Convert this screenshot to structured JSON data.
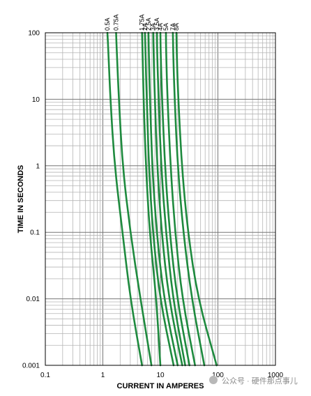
{
  "chart_data": {
    "type": "line",
    "title": "",
    "xlabel": "CURRENT IN AMPERES",
    "ylabel": "TIME IN SECONDS",
    "x_scale": "log",
    "y_scale": "log",
    "xlim": [
      0.1,
      1000
    ],
    "ylim": [
      0.001,
      100
    ],
    "x_ticks": [
      "0.1",
      "1",
      "10",
      "100",
      "1000"
    ],
    "y_ticks": [
      "0.001",
      "0.01",
      "0.1",
      "1",
      "10",
      "100"
    ],
    "grid": true,
    "line_color": "#1e8a3e",
    "series": [
      {
        "name": "0.5A",
        "points": [
          [
            1.2,
            100
          ],
          [
            1.25,
            50
          ],
          [
            1.35,
            10
          ],
          [
            1.6,
            1
          ],
          [
            2.2,
            0.1
          ],
          [
            3.0,
            0.01
          ],
          [
            4.8,
            0.001
          ]
        ]
      },
      {
        "name": "0.75A",
        "points": [
          [
            1.7,
            100
          ],
          [
            1.75,
            50
          ],
          [
            1.9,
            10
          ],
          [
            2.2,
            1
          ],
          [
            3.0,
            0.1
          ],
          [
            4.5,
            0.01
          ],
          [
            7.0,
            0.001
          ]
        ]
      },
      {
        "name": "1.75A",
        "points": [
          [
            4.8,
            100
          ],
          [
            4.9,
            50
          ],
          [
            5.1,
            10
          ],
          [
            5.6,
            1
          ],
          [
            6.5,
            0.1
          ],
          [
            8.5,
            0.01
          ],
          [
            10,
            0.001
          ]
        ]
      },
      {
        "name": "2A",
        "points": [
          [
            5.4,
            100
          ],
          [
            5.5,
            50
          ],
          [
            5.8,
            10
          ],
          [
            6.3,
            1
          ],
          [
            7.4,
            0.1
          ],
          [
            9.8,
            0.01
          ],
          [
            17,
            0.001
          ]
        ]
      },
      {
        "name": "2.5A",
        "points": [
          [
            6.2,
            100
          ],
          [
            6.3,
            50
          ],
          [
            6.6,
            10
          ],
          [
            7.2,
            1
          ],
          [
            8.6,
            0.1
          ],
          [
            11.5,
            0.01
          ],
          [
            20,
            0.001
          ]
        ]
      },
      {
        "name": "3A",
        "points": [
          [
            7.5,
            100
          ],
          [
            7.6,
            50
          ],
          [
            8.0,
            10
          ],
          [
            8.8,
            1
          ],
          [
            10.5,
            0.1
          ],
          [
            14,
            0.01
          ],
          [
            24,
            0.001
          ]
        ]
      },
      {
        "name": "3.5A",
        "points": [
          [
            8.7,
            100
          ],
          [
            8.8,
            50
          ],
          [
            9.3,
            10
          ],
          [
            10.3,
            1
          ],
          [
            12.5,
            0.1
          ],
          [
            16.5,
            0.01
          ],
          [
            27,
            0.001
          ]
        ]
      },
      {
        "name": "4A",
        "points": [
          [
            10,
            100
          ],
          [
            10.1,
            50
          ],
          [
            10.7,
            10
          ],
          [
            12,
            1
          ],
          [
            14.5,
            0.1
          ],
          [
            19.5,
            0.01
          ],
          [
            32,
            0.001
          ]
        ]
      },
      {
        "name": "5A",
        "points": [
          [
            12.5,
            100
          ],
          [
            12.6,
            50
          ],
          [
            13.3,
            10
          ],
          [
            15,
            1
          ],
          [
            18,
            0.1
          ],
          [
            24,
            0.01
          ],
          [
            40,
            0.001
          ]
        ]
      },
      {
        "name": "7A",
        "points": [
          [
            16.5,
            100
          ],
          [
            16.7,
            50
          ],
          [
            17.7,
            10
          ],
          [
            20,
            1
          ],
          [
            25,
            0.1
          ],
          [
            35,
            0.01
          ],
          [
            58,
            0.001
          ]
        ]
      },
      {
        "name": "8A",
        "points": [
          [
            19,
            100
          ],
          [
            19.2,
            50
          ],
          [
            20.5,
            10
          ],
          [
            23.5,
            1
          ],
          [
            30,
            0.1
          ],
          [
            45,
            0.01
          ],
          [
            95,
            0.001
          ]
        ]
      }
    ]
  },
  "watermark": {
    "text": "公众号 · 硬件那点事儿"
  }
}
